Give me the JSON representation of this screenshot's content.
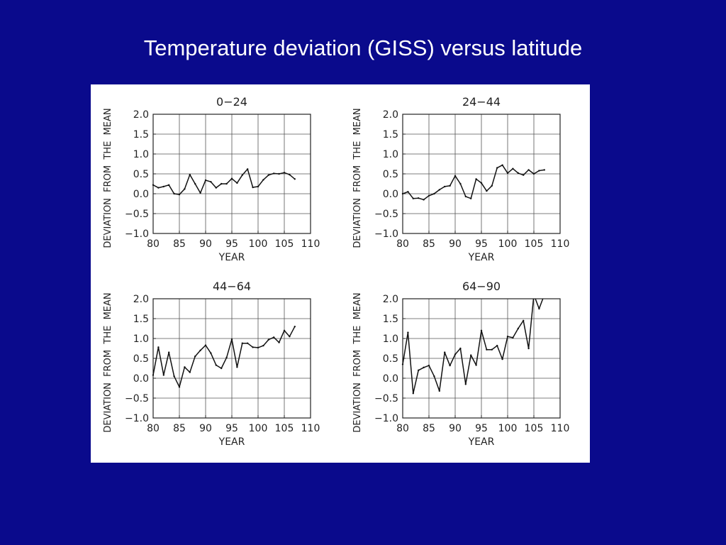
{
  "slide": {
    "title": "Temperature deviation (GISS) versus latitude",
    "background_color": "#0a0a8c",
    "title_color": "#ffffff"
  },
  "chart_data": [
    {
      "type": "line",
      "title": "0−24",
      "xlabel": "YEAR",
      "ylabel": "DEVIATION  FROM  THE  MEAN",
      "xlim": [
        80,
        110
      ],
      "ylim": [
        -1.0,
        2.0
      ],
      "xticks": [
        "80",
        "85",
        "90",
        "95",
        "100",
        "105",
        "110"
      ],
      "yticks": [
        "2.0",
        "1.5",
        "1.0",
        "0.5",
        "0.0",
        "−0.5",
        "−1.0"
      ],
      "grid": true,
      "x": [
        80,
        81,
        82,
        83,
        84,
        85,
        86,
        87,
        88,
        89,
        90,
        91,
        92,
        93,
        94,
        95,
        96,
        97,
        98,
        99,
        100,
        101,
        102,
        103,
        104,
        105,
        106,
        107
      ],
      "y": [
        0.22,
        0.15,
        0.18,
        0.22,
        0.0,
        -0.02,
        0.12,
        0.48,
        0.25,
        0.02,
        0.34,
        0.3,
        0.15,
        0.25,
        0.25,
        0.38,
        0.27,
        0.47,
        0.62,
        0.16,
        0.18,
        0.35,
        0.47,
        0.51,
        0.5,
        0.53,
        0.48,
        0.37
      ]
    },
    {
      "type": "line",
      "title": "24−44",
      "xlabel": "YEAR",
      "ylabel": "DEVIATION  FROM  THE  MEAN",
      "xlim": [
        80,
        110
      ],
      "ylim": [
        -1.0,
        2.0
      ],
      "xticks": [
        "80",
        "85",
        "90",
        "95",
        "100",
        "105",
        "110"
      ],
      "yticks": [
        "2.0",
        "1.5",
        "1.0",
        "0.5",
        "0.0",
        "−0.5",
        "−1.0"
      ],
      "grid": true,
      "x": [
        80,
        81,
        82,
        83,
        84,
        85,
        86,
        87,
        88,
        89,
        90,
        91,
        92,
        93,
        94,
        95,
        96,
        97,
        98,
        99,
        100,
        101,
        102,
        103,
        104,
        105,
        106,
        107
      ],
      "y": [
        0.0,
        0.05,
        -0.12,
        -0.11,
        -0.15,
        -0.05,
        0.0,
        0.1,
        0.18,
        0.2,
        0.45,
        0.25,
        -0.07,
        -0.12,
        0.37,
        0.27,
        0.07,
        0.2,
        0.65,
        0.72,
        0.52,
        0.63,
        0.52,
        0.47,
        0.6,
        0.5,
        0.58,
        0.6
      ]
    },
    {
      "type": "line",
      "title": "44−64",
      "xlabel": "YEAR",
      "ylabel": "DEVIATION  FROM  THE  MEAN",
      "xlim": [
        80,
        110
      ],
      "ylim": [
        -1.0,
        2.0
      ],
      "xticks": [
        "80",
        "85",
        "90",
        "95",
        "100",
        "105",
        "110"
      ],
      "yticks": [
        "2.0",
        "1.5",
        "1.0",
        "0.5",
        "0.0",
        "−0.5",
        "−1.0"
      ],
      "grid": true,
      "x": [
        80,
        81,
        82,
        83,
        84,
        85,
        86,
        87,
        88,
        89,
        90,
        91,
        92,
        93,
        94,
        95,
        96,
        97,
        98,
        99,
        100,
        101,
        102,
        103,
        104,
        105,
        106,
        107
      ],
      "y": [
        0.08,
        0.78,
        0.08,
        0.65,
        0.05,
        -0.22,
        0.28,
        0.15,
        0.55,
        0.7,
        0.83,
        0.63,
        0.33,
        0.25,
        0.52,
        0.98,
        0.28,
        0.88,
        0.88,
        0.78,
        0.77,
        0.82,
        0.97,
        1.03,
        0.9,
        1.2,
        1.05,
        1.3
      ]
    },
    {
      "type": "line",
      "title": "64−90",
      "xlabel": "YEAR",
      "ylabel": "DEVIATION  FROM  THE  MEAN",
      "xlim": [
        80,
        110
      ],
      "ylim": [
        -1.0,
        2.0
      ],
      "xticks": [
        "80",
        "85",
        "90",
        "95",
        "100",
        "105",
        "110"
      ],
      "yticks": [
        "2.0",
        "1.5",
        "1.0",
        "0.5",
        "0.0",
        "−0.5",
        "−1.0"
      ],
      "grid": true,
      "x": [
        80,
        81,
        82,
        83,
        84,
        85,
        86,
        87,
        88,
        89,
        90,
        91,
        92,
        93,
        94,
        95,
        96,
        97,
        98,
        99,
        100,
        101,
        102,
        103,
        104,
        105,
        106,
        107
      ],
      "y": [
        0.35,
        1.15,
        -0.38,
        0.2,
        0.27,
        0.32,
        0.05,
        -0.32,
        0.65,
        0.32,
        0.6,
        0.75,
        -0.15,
        0.58,
        0.33,
        1.2,
        0.72,
        0.72,
        0.82,
        0.48,
        1.05,
        1.02,
        1.25,
        1.45,
        0.75,
        2.1,
        1.75,
        2.1
      ]
    }
  ]
}
